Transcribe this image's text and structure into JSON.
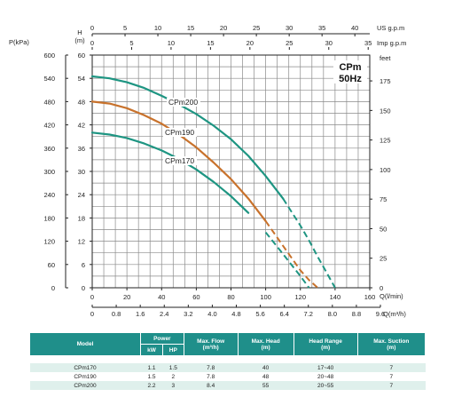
{
  "chart_data": {
    "type": "line",
    "title_line1": "CPm",
    "title_line2": "50Hz",
    "axes": {
      "bottom_primary": {
        "label": "Q(l/min)",
        "ticks": [
          "0",
          "20",
          "40",
          "60",
          "80",
          "100",
          "120",
          "140",
          "160"
        ],
        "range": [
          0,
          160
        ]
      },
      "bottom_secondary": {
        "label": "Q(m³/h)",
        "ticks": [
          "0",
          "0.8",
          "1.6",
          "2.4",
          "3.2",
          "4.0",
          "4.8",
          "5.6",
          "6.4",
          "7.2",
          "8.0",
          "8.8",
          "9.6"
        ],
        "range": [
          0,
          9.6
        ]
      },
      "top_us": {
        "label": "US g.p.m",
        "ticks": [
          "0",
          "5",
          "10",
          "15",
          "20",
          "25",
          "30",
          "35",
          "40"
        ],
        "range": [
          0,
          42.27
        ]
      },
      "top_imp": {
        "label": "Imp g.p.m",
        "ticks": [
          "0",
          "5",
          "10",
          "15",
          "20",
          "25",
          "30",
          "35"
        ],
        "range": [
          0,
          35.2
        ]
      },
      "left_pressure": {
        "label": "P(kPa)",
        "ticks": [
          "0",
          "60",
          "120",
          "180",
          "240",
          "300",
          "360",
          "420",
          "480",
          "540",
          "600"
        ],
        "range": [
          0,
          600
        ]
      },
      "left_head": {
        "label_line1": "H",
        "label_line2": "(m)",
        "ticks": [
          "0",
          "6",
          "12",
          "18",
          "24",
          "30",
          "36",
          "42",
          "48",
          "54",
          "60"
        ],
        "range": [
          0,
          60
        ]
      },
      "right_feet": {
        "label": "feet",
        "ticks": [
          "0",
          "25",
          "50",
          "75",
          "100",
          "125",
          "150",
          "175"
        ],
        "range": [
          0,
          196.85
        ]
      }
    },
    "grid": true,
    "series": [
      {
        "name": "CPm200",
        "color": "#1e9582",
        "x": [
          0,
          10,
          20,
          30,
          40,
          50,
          60,
          70,
          80,
          90,
          100,
          110,
          120,
          125,
          130,
          135,
          140
        ],
        "y": [
          54.5,
          54.0,
          53.0,
          51.5,
          49.5,
          47.3,
          44.8,
          41.8,
          38.3,
          34.0,
          28.8,
          23.0,
          16.0,
          12.2,
          8.0,
          4.0,
          0
        ],
        "dashed_from_x": 110
      },
      {
        "name": "CPm190",
        "color": "#c8722c",
        "x": [
          0,
          10,
          20,
          30,
          40,
          50,
          60,
          70,
          80,
          90,
          100,
          110,
          120,
          125,
          130
        ],
        "y": [
          48.0,
          47.5,
          46.3,
          44.5,
          42.3,
          39.5,
          36.2,
          32.3,
          28.0,
          23.0,
          17.2,
          10.8,
          4.5,
          2.0,
          0
        ],
        "dashed_from_x": 100
      },
      {
        "name": "CPm170",
        "color": "#1e9582",
        "x": [
          0,
          10,
          20,
          30,
          40,
          50,
          60,
          70,
          80,
          90,
          100,
          110,
          120,
          125
        ],
        "y": [
          40.0,
          39.5,
          38.6,
          37.2,
          35.4,
          33.2,
          30.5,
          27.3,
          23.6,
          19.3,
          14.3,
          8.7,
          3.0,
          0
        ],
        "dashed_from_x": 95
      }
    ]
  },
  "table": {
    "headers": {
      "model": "Model",
      "power": "Power",
      "kw": "kW",
      "hp": "HP",
      "max_flow": "Max. Flow",
      "max_flow_unit": "(m³/h)",
      "max_head": "Max. Head",
      "max_head_unit": "(m)",
      "head_range": "Head Range",
      "head_range_unit": "(m)",
      "max_suction": "Max. Suction",
      "max_suction_unit": "(m)"
    },
    "rows": [
      {
        "model": "CPm170",
        "kw": "1.1",
        "hp": "1.5",
        "max_flow": "7.8",
        "max_head": "40",
        "head_range": "17~40",
        "max_suction": "7"
      },
      {
        "model": "CPm190",
        "kw": "1.5",
        "hp": "2",
        "max_flow": "7.8",
        "max_head": "48",
        "head_range": "20~48",
        "max_suction": "7"
      },
      {
        "model": "CPm200",
        "kw": "2.2",
        "hp": "3",
        "max_flow": "8.4",
        "max_head": "55",
        "head_range": "20~55",
        "max_suction": "7"
      }
    ]
  }
}
